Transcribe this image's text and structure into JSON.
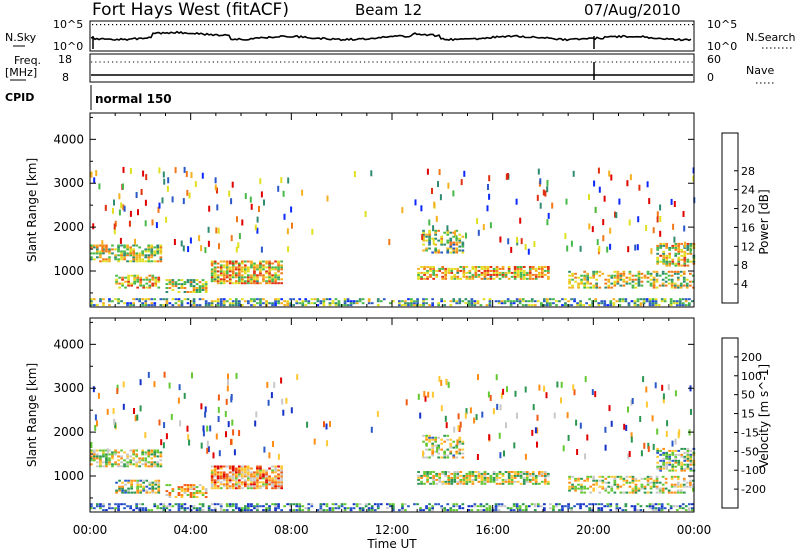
{
  "header": {
    "station": "Fort Hays West (fitACF)",
    "beam": "Beam 12",
    "date": "07/Aug/2010"
  },
  "strips": {
    "noise_left_label": "N.Sky",
    "noise_right_label": "N.Search",
    "noise_ticks_left": [
      "10^5",
      "10^0"
    ],
    "noise_ticks_right": [
      "10^5",
      "10^0"
    ],
    "freq_left_label": "Freq.",
    "freq_unit": "[MHz]",
    "freq_ticks": [
      "18",
      "8"
    ],
    "nave_label": "Nave",
    "nave_ticks": [
      "60",
      "0"
    ],
    "cpid_label": "CPID",
    "cpid_value": "normal 150"
  },
  "chart_data": [
    {
      "type": "heatmap",
      "panel": "power",
      "ylabel": "Slant Range [km]",
      "yticks": [
        1000,
        2000,
        3000,
        4000
      ],
      "ylim": [
        180,
        4600
      ],
      "xlim": [
        0,
        24
      ],
      "colorbar": {
        "label": "Power [dB]",
        "ticks": [
          "4",
          "8",
          "12",
          "16",
          "20",
          "24",
          "28"
        ],
        "colors": [
          "#0a28ff",
          "#2a58c8",
          "#2e8a70",
          "#48b848",
          "#e0e020",
          "#f5b020",
          "#f07818",
          "#e03010",
          "#e00000"
        ]
      },
      "echo_regions": [
        {
          "t0": 0.0,
          "t1": 2.8,
          "r0": 1200,
          "r1": 1600,
          "density": 0.7,
          "level": 0.5
        },
        {
          "t0": 1.0,
          "t1": 2.7,
          "r0": 600,
          "r1": 900,
          "density": 0.65,
          "level": 0.6
        },
        {
          "t0": 3.0,
          "t1": 4.6,
          "r0": 500,
          "r1": 800,
          "density": 0.6,
          "level": 0.5
        },
        {
          "t0": 4.8,
          "t1": 7.6,
          "r0": 700,
          "r1": 1200,
          "density": 0.8,
          "level": 0.6
        },
        {
          "t0": 0.0,
          "t1": 24.0,
          "r0": 200,
          "r1": 340,
          "density": 0.55,
          "level": 0.35
        },
        {
          "t0": 13.2,
          "t1": 14.8,
          "r0": 1400,
          "r1": 1900,
          "density": 0.5,
          "level": 0.45
        },
        {
          "t0": 13.0,
          "t1": 18.2,
          "r0": 800,
          "r1": 1100,
          "density": 0.7,
          "level": 0.6
        },
        {
          "t0": 19.0,
          "t1": 24.0,
          "r0": 600,
          "r1": 1000,
          "density": 0.55,
          "level": 0.5
        },
        {
          "t0": 22.5,
          "t1": 24.0,
          "r0": 1100,
          "r1": 1600,
          "density": 0.65,
          "level": 0.55
        }
      ]
    },
    {
      "type": "heatmap",
      "panel": "velocity",
      "ylabel": "Slant Range [km]",
      "yticks": [
        1000,
        2000,
        3000,
        4000
      ],
      "ylim": [
        180,
        4600
      ],
      "xlim": [
        0,
        24
      ],
      "xticks": [
        "00:00",
        "04:00",
        "08:00",
        "12:00",
        "16:00",
        "20:00",
        "00:00"
      ],
      "xlabel": "Time UT",
      "colorbar": {
        "label": "Velocity [m s^-1]",
        "ticks": [
          "200",
          "100",
          "50",
          "15",
          "-15",
          "-50",
          "-100",
          "-200"
        ],
        "colors": [
          "#1432c8",
          "#2a58c8",
          "#2a9650",
          "#64c832",
          "#c8c8c8",
          "#ffc832",
          "#ff8c14",
          "#f05a14",
          "#e00000"
        ]
      },
      "echo_regions": [
        {
          "t0": 0.0,
          "t1": 2.8,
          "r0": 1200,
          "r1": 1600,
          "density": 0.7,
          "level": 0.5
        },
        {
          "t0": 1.0,
          "t1": 2.7,
          "r0": 600,
          "r1": 900,
          "density": 0.65,
          "level": 0.45
        },
        {
          "t0": 3.0,
          "t1": 4.6,
          "r0": 500,
          "r1": 800,
          "density": 0.6,
          "level": 0.62
        },
        {
          "t0": 4.8,
          "t1": 7.6,
          "r0": 700,
          "r1": 1200,
          "density": 0.8,
          "level": 0.7
        },
        {
          "t0": 0.0,
          "t1": 24.0,
          "r0": 200,
          "r1": 340,
          "density": 0.55,
          "level": 0.25
        },
        {
          "t0": 13.2,
          "t1": 14.8,
          "r0": 1400,
          "r1": 1900,
          "density": 0.5,
          "level": 0.48
        },
        {
          "t0": 13.0,
          "t1": 18.2,
          "r0": 800,
          "r1": 1100,
          "density": 0.7,
          "level": 0.5
        },
        {
          "t0": 19.0,
          "t1": 24.0,
          "r0": 600,
          "r1": 1000,
          "density": 0.55,
          "level": 0.5
        },
        {
          "t0": 22.5,
          "t1": 24.0,
          "r0": 1100,
          "r1": 1600,
          "density": 0.65,
          "level": 0.45
        }
      ]
    }
  ]
}
